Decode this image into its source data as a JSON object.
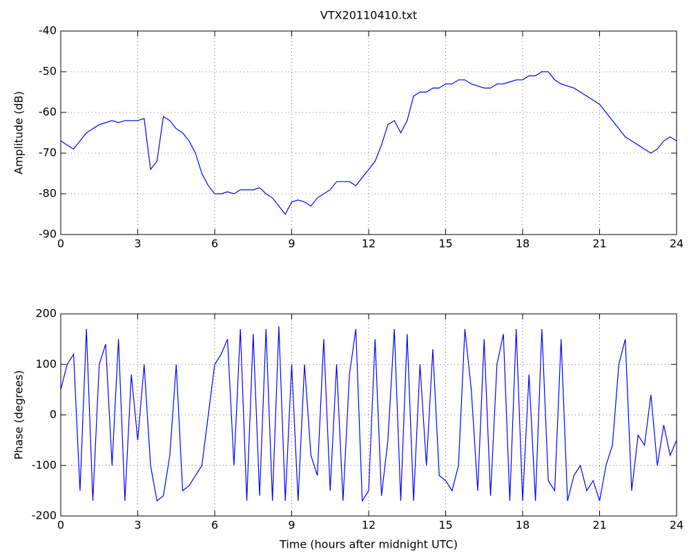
{
  "chart_data": [
    {
      "type": "line",
      "title": "VTX20110410.txt",
      "y_label": "Amplitude (dB)",
      "x": [
        0,
        0.25,
        0.5,
        0.75,
        1,
        1.25,
        1.5,
        1.75,
        2,
        2.25,
        2.5,
        2.75,
        3,
        3.25,
        3.5,
        3.75,
        4,
        4.25,
        4.5,
        4.75,
        5,
        5.25,
        5.5,
        5.75,
        6,
        6.25,
        6.5,
        6.75,
        7,
        7.25,
        7.5,
        7.75,
        8,
        8.25,
        8.5,
        8.75,
        9,
        9.25,
        9.5,
        9.75,
        10,
        10.25,
        10.5,
        10.75,
        11,
        11.25,
        11.5,
        11.75,
        12,
        12.25,
        12.5,
        12.75,
        13,
        13.25,
        13.5,
        13.75,
        14,
        14.25,
        14.5,
        14.75,
        15,
        15.25,
        15.5,
        15.75,
        16,
        16.25,
        16.5,
        16.75,
        17,
        17.25,
        17.5,
        17.75,
        18,
        18.25,
        18.5,
        18.75,
        19,
        19.25,
        19.5,
        19.75,
        20,
        20.25,
        20.5,
        20.75,
        21,
        21.25,
        21.5,
        21.75,
        22,
        22.25,
        22.5,
        22.75,
        23,
        23.25,
        23.5,
        23.75,
        24
      ],
      "series": [
        {
          "color": "#0000ff",
          "values": [
            -67,
            -68,
            -69,
            -67,
            -65,
            -64,
            -63,
            -62.5,
            -62,
            -62.5,
            -62,
            -62,
            -62,
            -61.5,
            -74,
            -72,
            -61,
            -62,
            -64,
            -65,
            -67,
            -70,
            -75,
            -78,
            -80,
            -80,
            -79.5,
            -80,
            -79,
            -79,
            -79,
            -78.5,
            -80,
            -81,
            -83,
            -85,
            -82,
            -81.5,
            -82,
            -83,
            -81,
            -80,
            -79,
            -77,
            -77,
            -77,
            -78,
            -76,
            -74,
            -72,
            -68,
            -63,
            -62,
            -65,
            -62,
            -56,
            -55,
            -55,
            -54,
            -54,
            -53,
            -53,
            -52,
            -52,
            -53,
            -53.5,
            -54,
            -54,
            -53,
            -53,
            -52.5,
            -52,
            -52,
            -51,
            -51,
            -50,
            -50,
            -52,
            -53,
            -53.5,
            -54,
            -55,
            -56,
            -57,
            -58,
            -60,
            -62,
            -64,
            -66,
            -67,
            -68,
            -69,
            -70,
            -69,
            -67,
            -66,
            -67
          ]
        }
      ],
      "xlim": [
        0,
        24
      ],
      "xticks": [
        0,
        3,
        6,
        9,
        12,
        15,
        18,
        21,
        24
      ],
      "ylim": [
        -90,
        -40
      ],
      "yticks": [
        -90,
        -80,
        -70,
        -60,
        -50,
        -40
      ],
      "grid": true
    },
    {
      "type": "line",
      "x_label": "Time (hours after midnight UTC)",
      "y_label": "Phase (degrees)",
      "x": [
        0,
        0.25,
        0.5,
        0.75,
        1,
        1.25,
        1.5,
        1.75,
        2,
        2.25,
        2.5,
        2.75,
        3,
        3.25,
        3.5,
        3.75,
        4,
        4.25,
        4.5,
        4.75,
        5,
        5.25,
        5.5,
        5.75,
        6,
        6.25,
        6.5,
        6.75,
        7,
        7.25,
        7.5,
        7.75,
        8,
        8.25,
        8.5,
        8.75,
        9,
        9.25,
        9.5,
        9.75,
        10,
        10.25,
        10.5,
        10.75,
        11,
        11.25,
        11.5,
        11.75,
        12,
        12.25,
        12.5,
        12.75,
        13,
        13.25,
        13.5,
        13.75,
        14,
        14.25,
        14.5,
        14.75,
        15,
        15.25,
        15.5,
        15.75,
        16,
        16.25,
        16.5,
        16.75,
        17,
        17.25,
        17.5,
        17.75,
        18,
        18.25,
        18.5,
        18.75,
        19,
        19.25,
        19.5,
        19.75,
        20,
        20.25,
        20.5,
        20.75,
        21,
        21.25,
        21.5,
        21.75,
        22,
        22.25,
        22.5,
        22.75,
        23,
        23.25,
        23.5,
        23.75,
        24
      ],
      "series": [
        {
          "color": "#0000ff",
          "values": [
            50,
            100,
            120,
            -150,
            170,
            -170,
            100,
            140,
            -100,
            150,
            -170,
            80,
            -50,
            100,
            -100,
            -170,
            -160,
            -80,
            100,
            -150,
            -140,
            -120,
            -100,
            0,
            100,
            120,
            150,
            -100,
            170,
            -170,
            160,
            -160,
            170,
            -170,
            175,
            -170,
            100,
            -170,
            100,
            -80,
            -120,
            150,
            -150,
            100,
            -170,
            80,
            170,
            -170,
            -150,
            150,
            -160,
            -50,
            170,
            -170,
            160,
            -170,
            100,
            -100,
            130,
            -120,
            -130,
            -150,
            -100,
            170,
            50,
            -150,
            150,
            -160,
            100,
            160,
            -170,
            170,
            -170,
            80,
            -170,
            170,
            -130,
            -150,
            150,
            -170,
            -120,
            -100,
            -150,
            -130,
            -170,
            -100,
            -60,
            100,
            150,
            -150,
            -40,
            -60,
            40,
            -100,
            -20,
            -80,
            -50
          ]
        }
      ],
      "xlim": [
        0,
        24
      ],
      "xticks": [
        0,
        3,
        6,
        9,
        12,
        15,
        18,
        21,
        24
      ],
      "ylim": [
        -200,
        200
      ],
      "yticks": [
        -200,
        -100,
        0,
        100,
        200
      ],
      "grid": true
    }
  ]
}
